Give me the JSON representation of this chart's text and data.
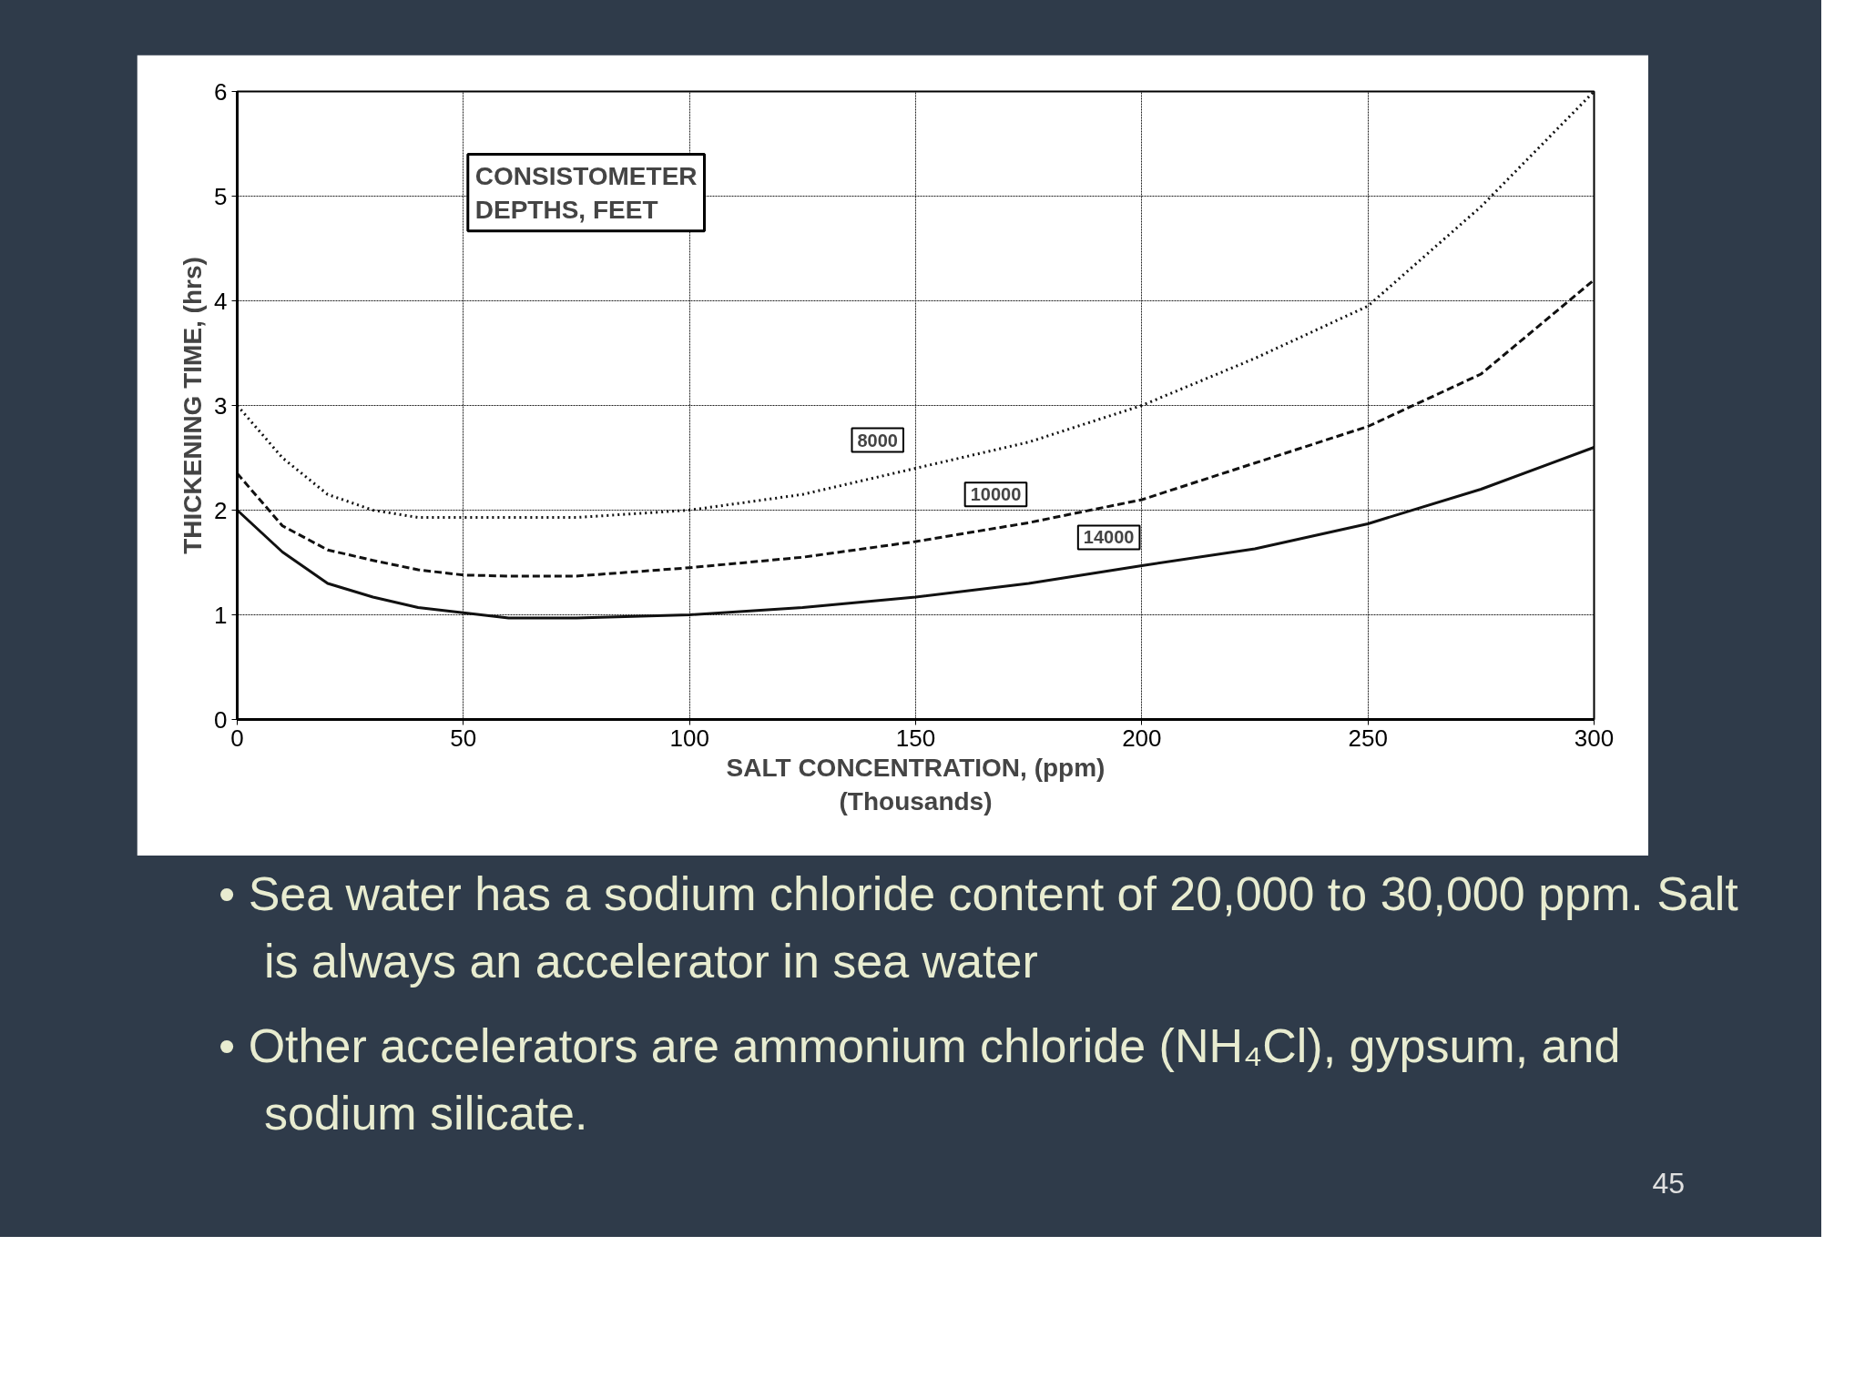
{
  "chart_data": {
    "type": "line",
    "xlabel": "SALT CONCENTRATION, (ppm)\n(Thousands)",
    "ylabel": "THICKENING TIME, (hrs)",
    "legend_title": "CONSISTOMETER\nDEPTHS, FEET",
    "x": [
      0,
      10,
      20,
      30,
      40,
      50,
      60,
      75,
      100,
      125,
      150,
      175,
      200,
      225,
      250,
      275,
      300
    ],
    "series": [
      {
        "name": "8000",
        "color": "#111111",
        "line_style": "dotted",
        "values": [
          3.0,
          2.5,
          2.15,
          2.0,
          1.93,
          1.93,
          1.93,
          1.93,
          2.0,
          2.15,
          2.4,
          2.65,
          3.0,
          3.45,
          3.95,
          4.9,
          6.0
        ]
      },
      {
        "name": "10000",
        "color": "#111111",
        "line_style": "dashed",
        "values": [
          2.35,
          1.85,
          1.62,
          1.52,
          1.43,
          1.38,
          1.37,
          1.37,
          1.45,
          1.55,
          1.7,
          1.88,
          2.1,
          2.45,
          2.8,
          3.3,
          4.2
        ]
      },
      {
        "name": "14000",
        "color": "#111111",
        "line_style": "solid",
        "values": [
          2.0,
          1.6,
          1.3,
          1.17,
          1.07,
          1.02,
          0.97,
          0.97,
          1.0,
          1.07,
          1.17,
          1.3,
          1.47,
          1.63,
          1.87,
          2.2,
          2.6
        ]
      }
    ],
    "xlim": [
      0,
      300
    ],
    "xticks": [
      0,
      50,
      100,
      150,
      200,
      250,
      300
    ],
    "ylim": [
      0,
      6
    ],
    "yticks": [
      0,
      1,
      2,
      3,
      4,
      5,
      6
    ],
    "grid": true,
    "annotations": [
      "• Sea water has a sodium chloride content of 20,000 to 30,000 ppm. Salt is always an accelerator in sea water",
      "• Other accelerators are ammonium chloride (NH₄Cl), gypsum, and sodium silicate.",
      "45"
    ]
  }
}
